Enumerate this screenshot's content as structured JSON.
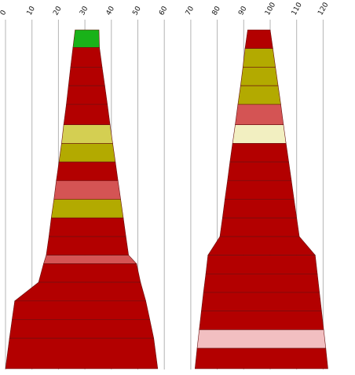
{
  "chart_data": {
    "type": "area",
    "description_axis": "horizontal value axis",
    "xlim": [
      0,
      124
    ],
    "ticks": [
      0,
      10,
      20,
      30,
      40,
      50,
      60,
      70,
      80,
      90,
      100,
      110,
      120
    ],
    "grid": true,
    "shapes": [
      {
        "name": "",
        "levels": [
          {
            "from": 0,
            "to": 0.052,
            "left_top": 26.3,
            "right_top": 35.3,
            "left_bottom": 25.5,
            "right_bottom": 35.5,
            "color": "#19b219"
          },
          {
            "from": 0.052,
            "to": 0.11,
            "left_top": 25.5,
            "right_top": 35.5,
            "left_bottom": 24.6,
            "right_bottom": 36.5,
            "color": "#b30000"
          },
          {
            "from": 0.11,
            "to": 0.165,
            "left_top": 24.6,
            "right_top": 36.5,
            "left_bottom": 23.8,
            "right_bottom": 37.5,
            "color": "#b30000"
          },
          {
            "from": 0.165,
            "to": 0.22,
            "left_top": 23.8,
            "right_top": 37.5,
            "left_bottom": 23.0,
            "right_bottom": 38.5,
            "color": "#b30000"
          },
          {
            "from": 0.22,
            "to": 0.28,
            "left_top": 23.0,
            "right_top": 38.5,
            "left_bottom": 22.0,
            "right_bottom": 39.5,
            "color": "#b30000"
          },
          {
            "from": 0.28,
            "to": 0.335,
            "left_top": 22.0,
            "right_top": 39.5,
            "left_bottom": 21.2,
            "right_bottom": 40.5,
            "color": "#d4cf52"
          },
          {
            "from": 0.335,
            "to": 0.39,
            "left_top": 21.2,
            "right_top": 40.5,
            "left_bottom": 20.2,
            "right_bottom": 41.5,
            "color": "#b3aa00"
          },
          {
            "from": 0.39,
            "to": 0.445,
            "left_top": 20.2,
            "right_top": 41.5,
            "left_bottom": 19.2,
            "right_bottom": 42.5,
            "color": "#b30000"
          },
          {
            "from": 0.445,
            "to": 0.5,
            "left_top": 19.2,
            "right_top": 42.5,
            "left_bottom": 18.3,
            "right_bottom": 43.5,
            "color": "#d45454"
          },
          {
            "from": 0.5,
            "to": 0.555,
            "left_top": 18.3,
            "right_top": 43.5,
            "left_bottom": 17.3,
            "right_bottom": 44.5,
            "color": "#b3aa00"
          },
          {
            "from": 0.555,
            "to": 0.61,
            "left_top": 17.3,
            "right_top": 44.5,
            "left_bottom": 16.4,
            "right_bottom": 45.5,
            "color": "#b30000"
          },
          {
            "from": 0.61,
            "to": 0.665,
            "left_top": 16.4,
            "right_top": 45.5,
            "left_bottom": 15.4,
            "right_bottom": 46.5,
            "color": "#b30000"
          },
          {
            "from": 0.665,
            "to": 0.69,
            "left_top": 15.4,
            "right_top": 46.5,
            "left_bottom": 14.4,
            "right_bottom": 49.5,
            "color": "#d45454"
          },
          {
            "from": 0.69,
            "to": 0.745,
            "left_top": 14.4,
            "right_top": 49.5,
            "left_bottom": 12.5,
            "right_bottom": 51.0,
            "color": "#b30000"
          },
          {
            "from": 0.745,
            "to": 0.8,
            "left_top": 12.5,
            "right_top": 51.0,
            "left_bottom": 3.5,
            "right_bottom": 53.0,
            "color": "#b30000"
          },
          {
            "from": 0.8,
            "to": 0.855,
            "left_top": 3.5,
            "right_top": 53.0,
            "left_bottom": 2.5,
            "right_bottom": 54.5,
            "color": "#b30000"
          },
          {
            "from": 0.855,
            "to": 0.91,
            "left_top": 2.5,
            "right_top": 54.5,
            "left_bottom": 1.5,
            "right_bottom": 56.0,
            "color": "#b30000"
          },
          {
            "from": 0.91,
            "to": 1.0,
            "left_top": 1.5,
            "right_top": 56.0,
            "left_bottom": 0.0,
            "right_bottom": 57.5,
            "color": "#b30000"
          }
        ]
      },
      {
        "name": "",
        "levels": [
          {
            "from": 0,
            "to": 0.055,
            "left_top": 91.5,
            "right_top": 100.0,
            "left_bottom": 90.5,
            "right_bottom": 101.0,
            "color": "#b30000"
          },
          {
            "from": 0.055,
            "to": 0.11,
            "left_top": 90.5,
            "right_top": 101.0,
            "left_bottom": 89.7,
            "right_bottom": 102.0,
            "color": "#b3aa00"
          },
          {
            "from": 0.11,
            "to": 0.165,
            "left_top": 89.7,
            "right_top": 102.0,
            "left_bottom": 88.8,
            "right_bottom": 103.0,
            "color": "#b3aa00"
          },
          {
            "from": 0.165,
            "to": 0.22,
            "left_top": 88.8,
            "right_top": 103.0,
            "left_bottom": 87.8,
            "right_bottom": 104.0,
            "color": "#b3aa00"
          },
          {
            "from": 0.22,
            "to": 0.28,
            "left_top": 87.8,
            "right_top": 104.0,
            "left_bottom": 86.8,
            "right_bottom": 105.0,
            "color": "#d45454"
          },
          {
            "from": 0.28,
            "to": 0.335,
            "left_top": 86.8,
            "right_top": 105.0,
            "left_bottom": 85.8,
            "right_bottom": 106.0,
            "color": "#f2efc1"
          },
          {
            "from": 0.335,
            "to": 0.39,
            "left_top": 85.8,
            "right_top": 106.0,
            "left_bottom": 84.8,
            "right_bottom": 107.0,
            "color": "#b30000"
          },
          {
            "from": 0.39,
            "to": 0.445,
            "left_top": 84.8,
            "right_top": 107.0,
            "left_bottom": 83.9,
            "right_bottom": 108.0,
            "color": "#b30000"
          },
          {
            "from": 0.445,
            "to": 0.5,
            "left_top": 83.9,
            "right_top": 108.0,
            "left_bottom": 82.9,
            "right_bottom": 109.0,
            "color": "#b30000"
          },
          {
            "from": 0.5,
            "to": 0.555,
            "left_top": 82.9,
            "right_top": 109.0,
            "left_bottom": 82.0,
            "right_bottom": 110.0,
            "color": "#b30000"
          },
          {
            "from": 0.555,
            "to": 0.61,
            "left_top": 82.0,
            "right_top": 110.0,
            "left_bottom": 81.0,
            "right_bottom": 111.0,
            "color": "#b30000"
          },
          {
            "from": 0.61,
            "to": 0.665,
            "left_top": 81.0,
            "right_top": 111.0,
            "left_bottom": 76.5,
            "right_bottom": 117.0,
            "color": "#b30000"
          },
          {
            "from": 0.665,
            "to": 0.72,
            "left_top": 76.5,
            "right_top": 117.0,
            "left_bottom": 75.7,
            "right_bottom": 117.8,
            "color": "#b30000"
          },
          {
            "from": 0.72,
            "to": 0.775,
            "left_top": 75.7,
            "right_top": 117.8,
            "left_bottom": 74.8,
            "right_bottom": 118.6,
            "color": "#b30000"
          },
          {
            "from": 0.775,
            "to": 0.83,
            "left_top": 74.8,
            "right_top": 118.6,
            "left_bottom": 74.0,
            "right_bottom": 119.4,
            "color": "#b30000"
          },
          {
            "from": 0.83,
            "to": 0.885,
            "left_top": 74.0,
            "right_top": 119.4,
            "left_bottom": 73.2,
            "right_bottom": 120.2,
            "color": "#b30000"
          },
          {
            "from": 0.885,
            "to": 0.94,
            "left_top": 73.2,
            "right_top": 120.2,
            "left_bottom": 72.4,
            "right_bottom": 121.0,
            "color": "#f2bfc1"
          },
          {
            "from": 0.94,
            "to": 1.0,
            "left_top": 72.4,
            "right_top": 121.0,
            "left_bottom": 71.6,
            "right_bottom": 121.8,
            "color": "#b30000"
          }
        ]
      }
    ]
  }
}
